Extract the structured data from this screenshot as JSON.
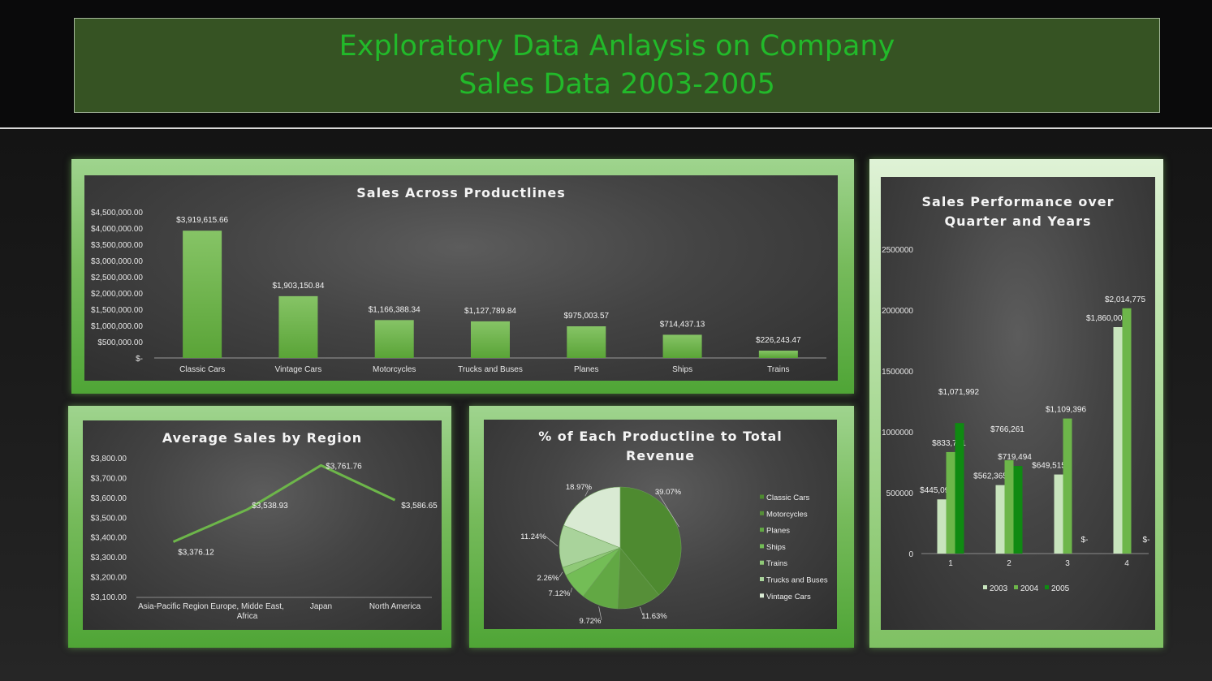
{
  "header": {
    "title_line1": "Exploratory Data Anlaysis on Company",
    "title_line2": "Sales Data 2003-2005"
  },
  "colors": {
    "title_green": "#22b92a",
    "bar_green": "#6cb446",
    "line_green": "#6db64a"
  },
  "chart_data": [
    {
      "id": "productlines",
      "type": "bar",
      "title": "Sales Across Productlines",
      "categories": [
        "Classic Cars",
        "Vintage Cars",
        "Motorcycles",
        "Trucks and Buses",
        "Planes",
        "Ships",
        "Trains"
      ],
      "values": [
        3919615.66,
        1903150.84,
        1166388.34,
        1127789.84,
        975003.57,
        714437.13,
        226243.47
      ],
      "value_labels": [
        "$3,919,615.66",
        "$1,903,150.84",
        "$1,166,388.34",
        "$1,127,789.84",
        "$975,003.57",
        "$714,437.13",
        "$226,243.47"
      ],
      "ylim": [
        0,
        4500000
      ],
      "yticks": [
        0,
        500000,
        1000000,
        1500000,
        2000000,
        2500000,
        3000000,
        3500000,
        4000000,
        4500000
      ],
      "ytick_labels": [
        "$-",
        "$500,000.00",
        "$1,000,000.00",
        "$1,500,000.00",
        "$2,000,000.00",
        "$2,500,000.00",
        "$3,000,000.00",
        "$3,500,000.00",
        "$4,000,000.00",
        "$4,500,000.00"
      ],
      "grid": false
    },
    {
      "id": "region",
      "type": "line",
      "title": "Average Sales by Region",
      "categories": [
        "Asia-Pacific Region",
        "Europe, Midde East, Africa",
        "Japan",
        "North America"
      ],
      "category_lines": [
        [
          "Asia-Pacific Region"
        ],
        [
          "Europe, Midde East,",
          "Africa"
        ],
        [
          "Japan"
        ],
        [
          "North America"
        ]
      ],
      "values": [
        3376.12,
        3538.93,
        3761.76,
        3586.65
      ],
      "value_labels": [
        "$3,376.12",
        "$3,538.93",
        "$3,761.76",
        "$3,586.65"
      ],
      "ylim": [
        3100,
        3800
      ],
      "yticks": [
        3100,
        3200,
        3300,
        3400,
        3500,
        3600,
        3700,
        3800
      ],
      "ytick_labels": [
        "$3,100.00",
        "$3,200.00",
        "$3,300.00",
        "$3,400.00",
        "$3,500.00",
        "$3,600.00",
        "$3,700.00",
        "$3,800.00"
      ],
      "grid": false
    },
    {
      "id": "share",
      "type": "pie",
      "title": "%  of Each Productline to Total Revenue",
      "title_lines": [
        "%  of Each Productline to Total",
        "Revenue"
      ],
      "labels": [
        "Classic Cars",
        "Motorcycles",
        "Planes",
        "Ships",
        "Trains",
        "Trucks and Buses",
        "Vintage Cars"
      ],
      "values": [
        39.07,
        11.63,
        9.72,
        7.12,
        2.26,
        11.24,
        18.97
      ],
      "value_labels": [
        "39.07%",
        "11.63%",
        "9.72%",
        "7.12%",
        "2.26%",
        "11.24%",
        "18.97%"
      ],
      "colors": [
        "#4e8a30",
        "#568f38",
        "#62a844",
        "#73bd56",
        "#8fc977",
        "#a9d39b",
        "#d9ead3"
      ],
      "legend_position": "right"
    },
    {
      "id": "quarters",
      "type": "bar",
      "title": "Sales Performance over Quarter and Years",
      "title_lines": [
        "Sales Performance over",
        "Quarter and Years"
      ],
      "categories": [
        "1",
        "2",
        "3",
        "4"
      ],
      "series": [
        {
          "name": "2003",
          "values": [
            445095,
            562365,
            649515,
            1860005
          ],
          "value_labels": [
            "$445,095",
            "$562,365",
            "$649,515",
            "$1,860,005"
          ],
          "color": "#c8e4bd"
        },
        {
          "name": "2004",
          "values": [
            833731,
            766261,
            1109396,
            2014775
          ],
          "value_labels": [
            "$833,731",
            "$766,261",
            "$1,109,396",
            "$2,014,775"
          ],
          "color": "#6db64a"
        },
        {
          "name": "2005",
          "values": [
            1071992,
            719494,
            0,
            0
          ],
          "value_labels": [
            "$1,071,992",
            "$719,494",
            "$-",
            "$-"
          ],
          "color": "#0f8a12"
        }
      ],
      "ylim": [
        0,
        2500000
      ],
      "yticks": [
        0,
        500000,
        1000000,
        1500000,
        2000000,
        2500000
      ],
      "ytick_labels": [
        "0",
        "500000",
        "1000000",
        "1500000",
        "2000000",
        "2500000"
      ],
      "legend_position": "bottom",
      "grid": false
    }
  ]
}
